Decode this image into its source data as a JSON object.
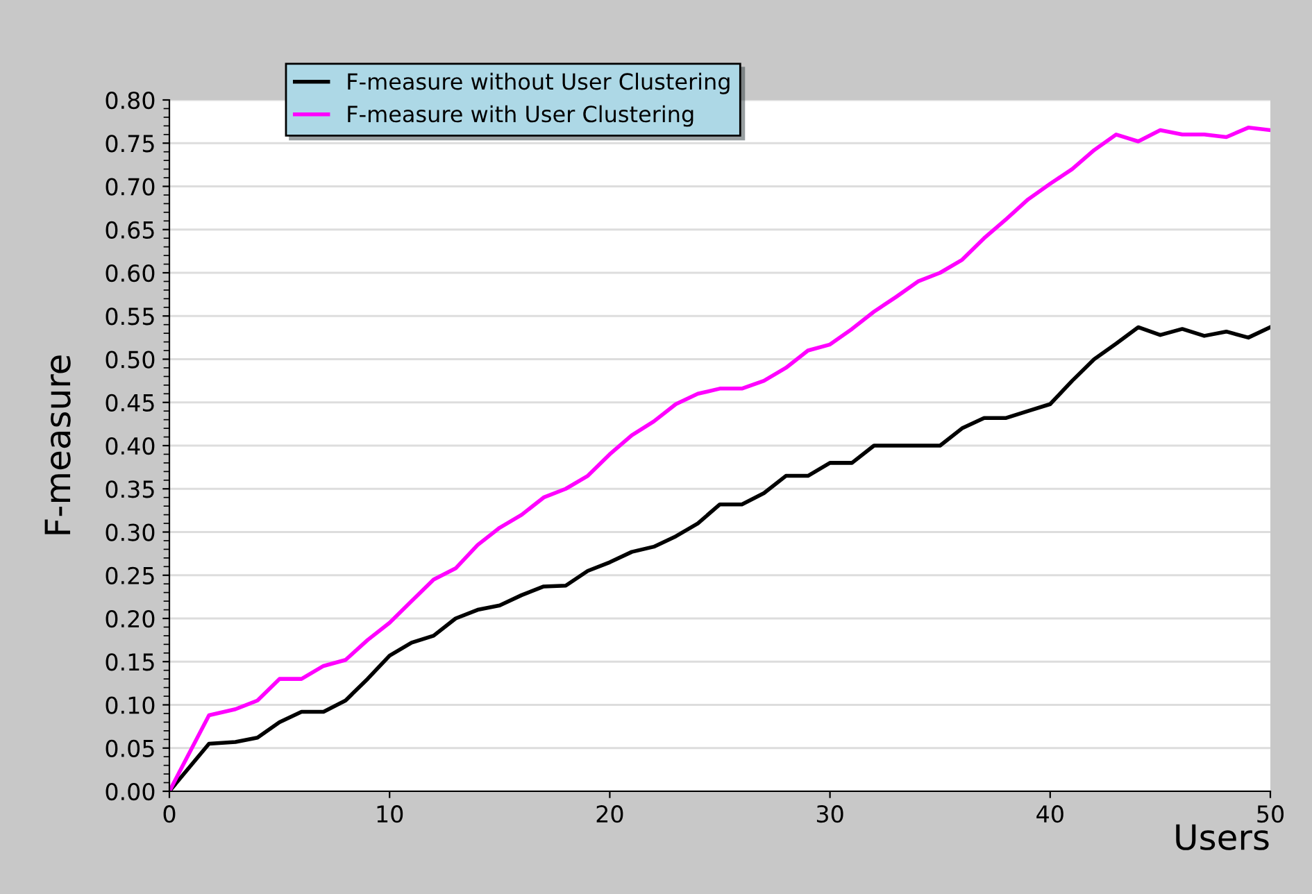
{
  "chart_data": {
    "type": "line",
    "xlabel": "Users",
    "ylabel": "F-measure",
    "xlim": [
      0,
      50
    ],
    "ylim": [
      0,
      0.8
    ],
    "xticks": [
      0,
      10,
      20,
      30,
      40,
      50
    ],
    "yticks": [
      {
        "value": 0,
        "label": "0.00"
      },
      {
        "value": 0.05,
        "label": "0.05"
      },
      {
        "value": 0.1,
        "label": "0.10"
      },
      {
        "value": 0.15,
        "label": "0.15"
      },
      {
        "value": 0.2,
        "label": "0.20"
      },
      {
        "value": 0.25,
        "label": "0.25"
      },
      {
        "value": 0.3,
        "label": "0.30"
      },
      {
        "value": 0.35,
        "label": "0.35"
      },
      {
        "value": 0.4,
        "label": "0.40"
      },
      {
        "value": 0.45,
        "label": "0.45"
      },
      {
        "value": 0.5,
        "label": "0.50"
      },
      {
        "value": 0.55,
        "label": "0.55"
      },
      {
        "value": 0.6,
        "label": "0.60"
      },
      {
        "value": 0.65,
        "label": "0.65"
      },
      {
        "value": 0.7,
        "label": "0.70"
      },
      {
        "value": 0.75,
        "label": "0.75"
      },
      {
        "value": 0.8,
        "label": "0.80"
      }
    ],
    "grid": "y",
    "legend": "top left",
    "marker": "none",
    "line_style": "solid",
    "x": [
      0,
      1.8,
      3,
      4,
      5,
      6,
      7,
      8,
      9,
      10,
      11,
      12,
      13,
      14,
      15,
      16,
      17,
      18,
      19,
      20,
      21,
      22,
      23,
      24,
      25,
      26,
      27,
      28,
      29,
      30,
      31,
      32,
      33,
      34,
      35,
      36,
      37,
      38,
      39,
      40,
      41,
      42,
      43,
      44,
      45,
      46,
      47,
      48,
      49,
      50
    ],
    "series": [
      {
        "name": "F-measure without User Clustering",
        "color": "#000000",
        "values": [
          0,
          0.055,
          0.057,
          0.062,
          0.08,
          0.092,
          0.092,
          0.105,
          0.13,
          0.157,
          0.172,
          0.18,
          0.2,
          0.21,
          0.215,
          0.227,
          0.237,
          0.238,
          0.255,
          0.265,
          0.277,
          0.283,
          0.295,
          0.31,
          0.332,
          0.332,
          0.345,
          0.365,
          0.365,
          0.38,
          0.38,
          0.4,
          0.4,
          0.4,
          0.4,
          0.42,
          0.432,
          0.432,
          0.44,
          0.448,
          0.475,
          0.5,
          0.518,
          0.537,
          0.528,
          0.535,
          0.527,
          0.532,
          0.525,
          0.537
        ]
      },
      {
        "name": "F-measure with User Clustering",
        "color": "#ff00ff",
        "values": [
          0,
          0.088,
          0.095,
          0.105,
          0.13,
          0.13,
          0.145,
          0.152,
          0.175,
          0.195,
          0.22,
          0.245,
          0.258,
          0.285,
          0.305,
          0.32,
          0.34,
          0.35,
          0.365,
          0.39,
          0.412,
          0.428,
          0.448,
          0.46,
          0.466,
          0.466,
          0.475,
          0.49,
          0.51,
          0.517,
          0.535,
          0.555,
          0.572,
          0.59,
          0.6,
          0.615,
          0.64,
          0.662,
          0.685,
          0.703,
          0.72,
          0.742,
          0.76,
          0.752,
          0.765,
          0.76,
          0.76,
          0.757,
          0.768,
          0.765
        ]
      }
    ]
  }
}
